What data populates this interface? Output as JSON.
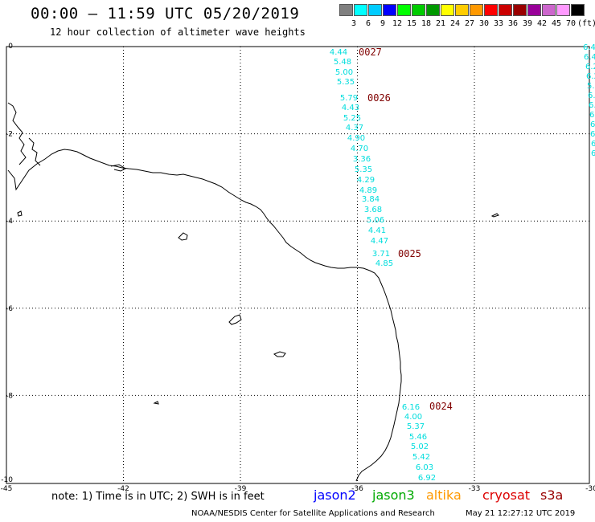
{
  "header": {
    "title": "00:00 — 11:59 UTC 05/20/2019",
    "subtitle": "12 hour collection of altimeter wave heights"
  },
  "legend": {
    "colors": [
      "#808080",
      "#00ffff",
      "#00ccff",
      "#0000ff",
      "#00ff00",
      "#00cc00",
      "#009900",
      "#ffff00",
      "#ffcc00",
      "#ff9900",
      "#ff0000",
      "#cc0000",
      "#990000",
      "#990099",
      "#cc66cc",
      "#ff99ff",
      "#000000"
    ],
    "labels": [
      "3",
      "6",
      "9",
      "12",
      "15",
      "18",
      "21",
      "24",
      "27",
      "30",
      "33",
      "36",
      "39",
      "42",
      "45",
      "70",
      "(ft)"
    ]
  },
  "map": {
    "x_ticks": [
      "-45",
      "-42",
      "-39",
      "-36",
      "-33",
      "-30"
    ],
    "y_ticks": [
      "0",
      "-2",
      "-4",
      "-6",
      "-8",
      "-10"
    ],
    "track_label_color": "#00dddd",
    "time_label_color": "#800000",
    "track_main": [
      "4.44",
      "5.48",
      "5.00",
      "5.35",
      "5.79",
      "4.43",
      "5.25",
      "4.37",
      "4.90",
      "4.70",
      "3.36",
      "5.35",
      "4.29",
      "4.89",
      "3.84",
      "3.68",
      "5.06",
      "4.41",
      "4.47",
      "3.71",
      "4.85"
    ],
    "track_south": [
      "6.16",
      "4.00",
      "5.37",
      "5.46",
      "5.02",
      "5.42",
      "6.03",
      "6.92"
    ],
    "track_east": [
      "6.4",
      "6.4",
      "6.2",
      "6.2",
      "5.",
      "6.",
      "6.",
      "6.",
      "6.",
      "6.",
      "6.",
      "6."
    ],
    "time_markers": [
      "0027",
      "0026",
      "0025",
      "0024"
    ]
  },
  "satellites": [
    {
      "name": "jason2",
      "color": "#0000ff"
    },
    {
      "name": "jason3",
      "color": "#00aa00"
    },
    {
      "name": "altika",
      "color": "#ff9900"
    },
    {
      "name": "cryosat",
      "color": "#dd0000"
    },
    {
      "name": "s3a",
      "color": "#990000"
    }
  ],
  "note": "note: 1) Time is in UTC; 2) SWH is in feet",
  "footer": {
    "left": "NOAA/NESDIS Center for Satellite Applications and Research",
    "right": "May 21 12:27:12 UTC 2019"
  }
}
